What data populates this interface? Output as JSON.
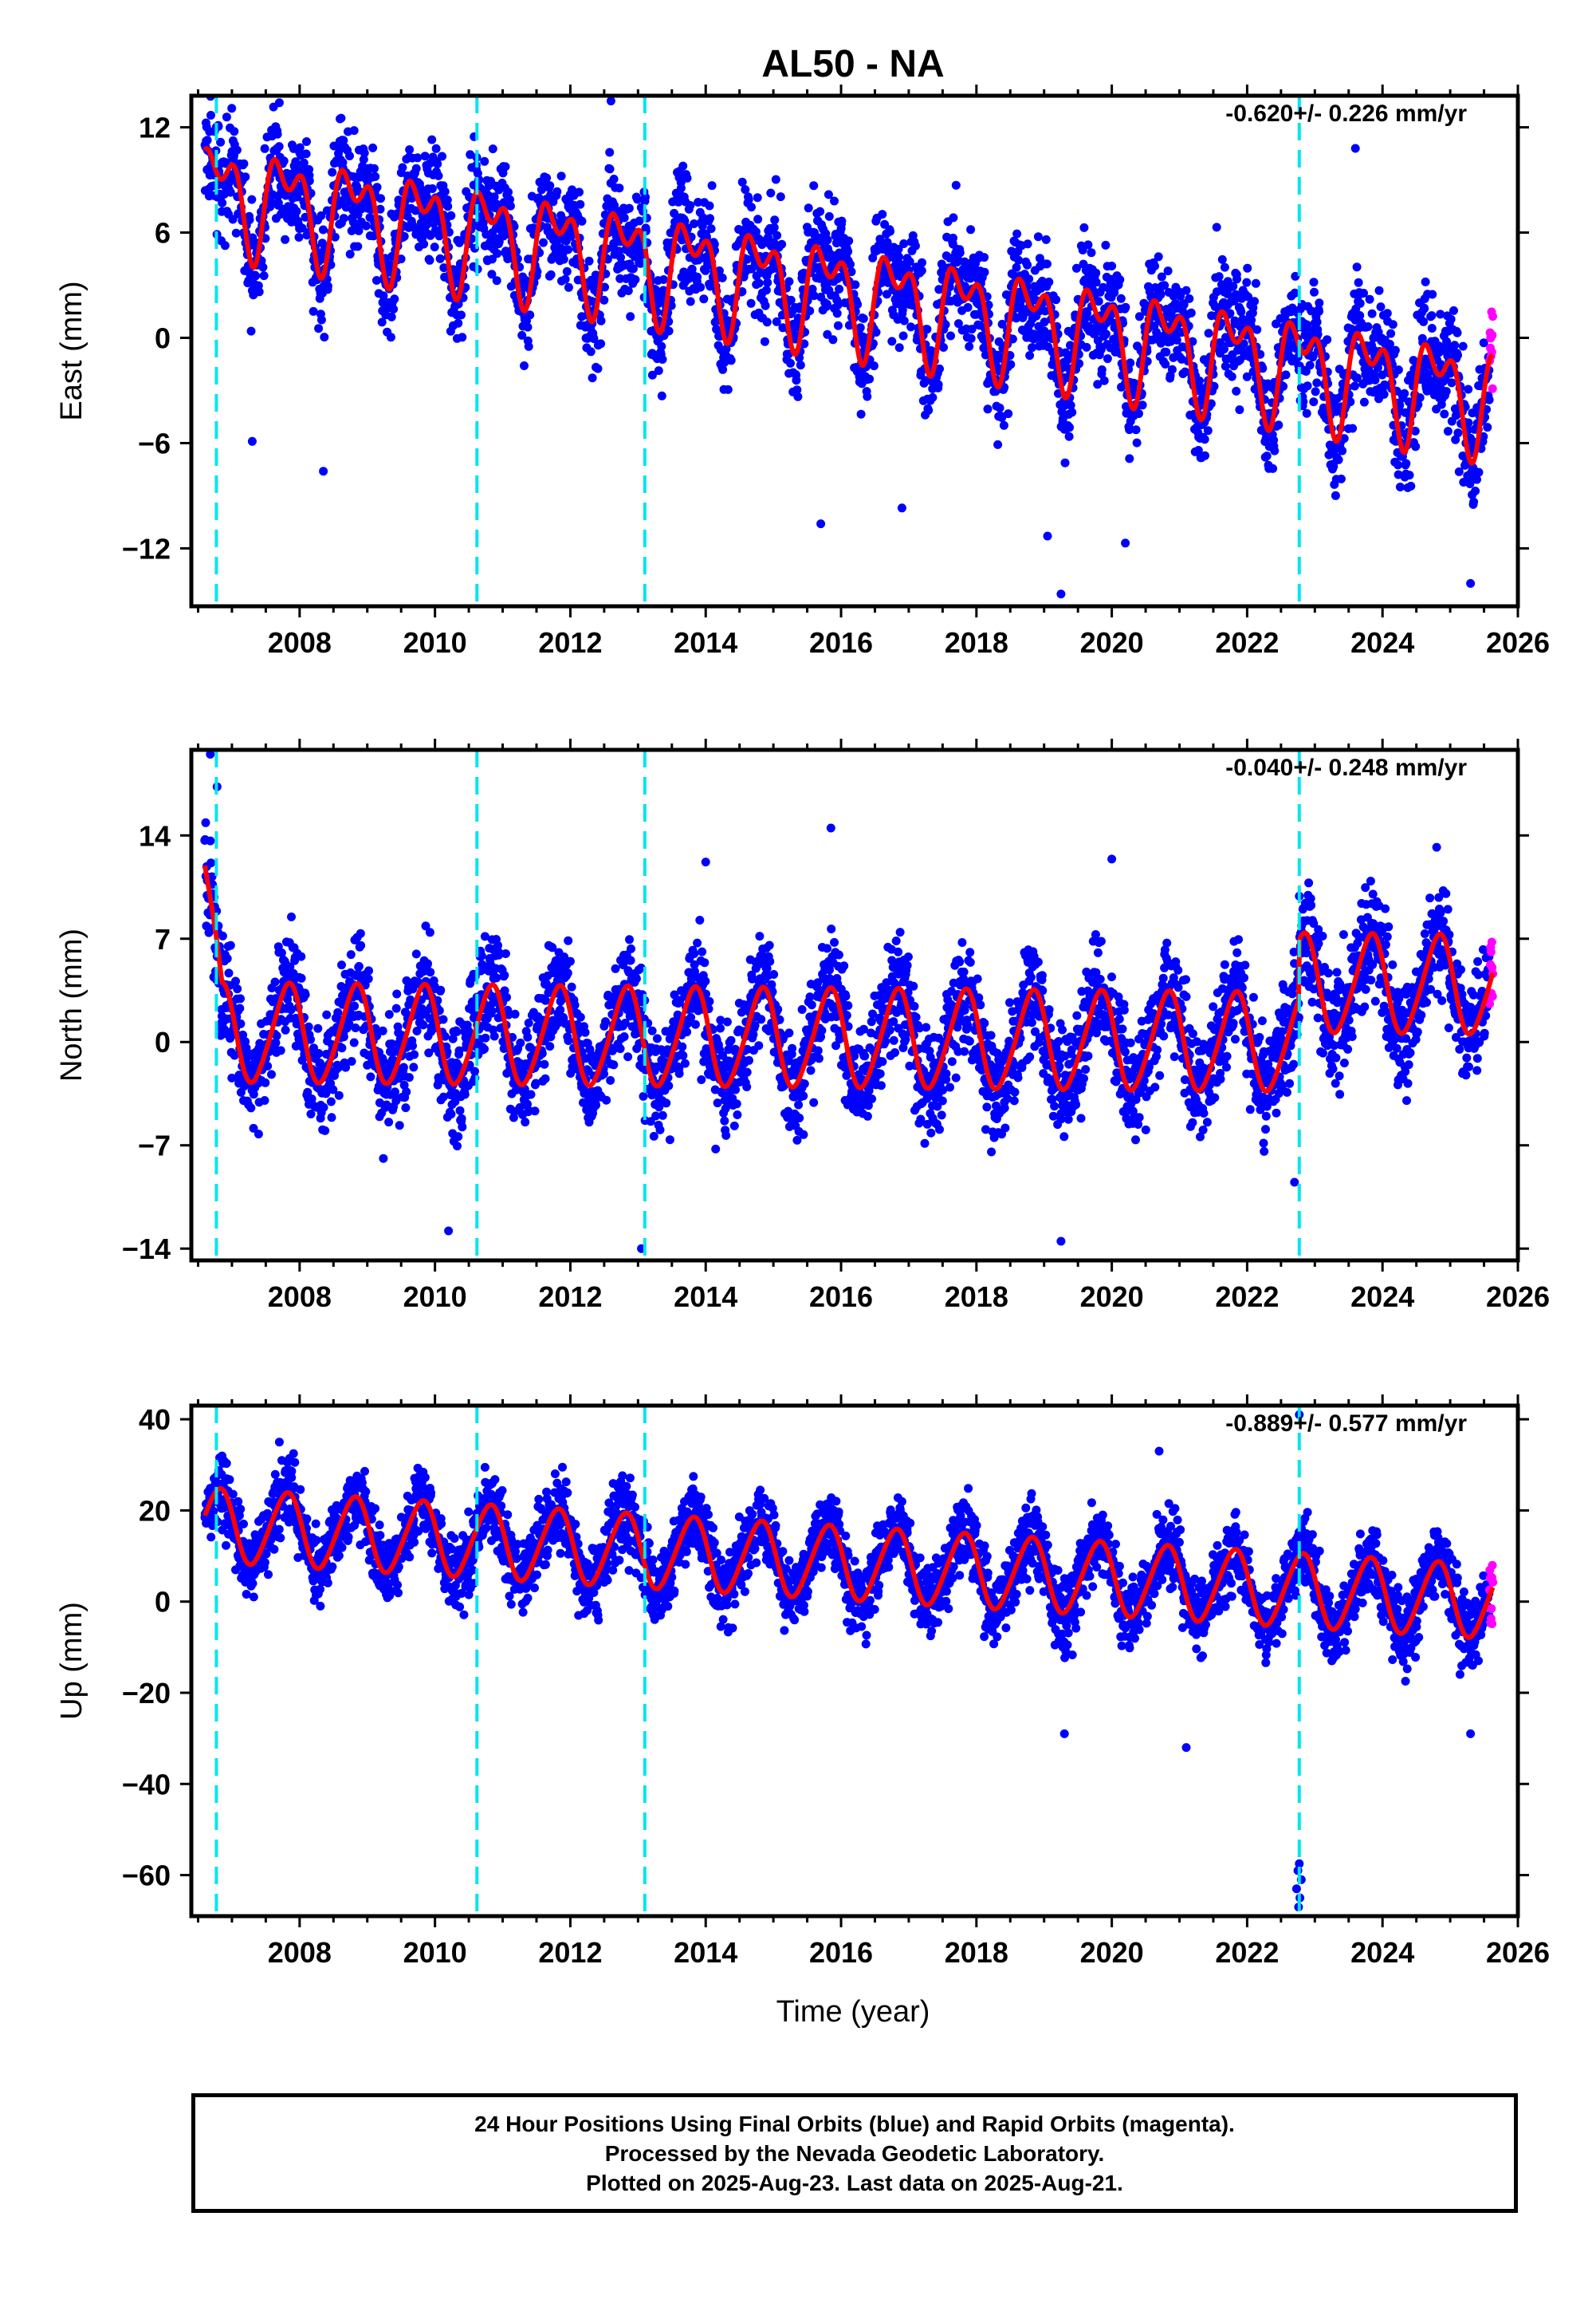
{
  "title": "AL50 - NA",
  "xlabel": "Time (year)",
  "colors": {
    "final": "#0000ff",
    "rapid": "#ff00ff",
    "model": "#ff0000",
    "event": "#00e5ee",
    "frame": "#000000"
  },
  "footer": {
    "line1": "24 Hour Positions Using Final Orbits (blue) and Rapid Orbits (magenta).",
    "line2": "Processed by the Nevada Geodetic Laboratory.",
    "line3": "Plotted on 2025-Aug-23. Last data on 2025-Aug-21."
  },
  "chart_data": [
    {
      "type": "scatter",
      "component": "East",
      "ylabel": "East (mm)",
      "rate_label": "-0.620+/- 0.226 mm/yr",
      "xlim": [
        2006.4,
        2026.0
      ],
      "ylim": [
        -15.3,
        13.8
      ],
      "xticks": [
        2008,
        2010,
        2012,
        2014,
        2016,
        2018,
        2020,
        2022,
        2024,
        2026
      ],
      "yticks": [
        -12,
        -6,
        0,
        6,
        12
      ],
      "data_span": [
        2006.6,
        2025.63
      ],
      "rapid_start": 2025.58,
      "event_lines": [
        2006.77,
        2010.62,
        2013.1,
        2022.77
      ],
      "model": {
        "offset": 2.6,
        "slope": -0.62,
        "annual_amp": 2.4,
        "annual_phase": 0.55,
        "semiannual_amp": 1.6,
        "semiannual_phase": 0.45,
        "scatter_sigma": 1.9,
        "steps": []
      },
      "outliers": [
        [
          2007.7,
          13.4
        ],
        [
          2012.6,
          13.5
        ],
        [
          2019.25,
          -14.6
        ],
        [
          2025.3,
          -14.0
        ],
        [
          2008.35,
          -7.6
        ],
        [
          2007.3,
          -5.9
        ],
        [
          2015.7,
          -10.6
        ],
        [
          2016.9,
          -9.7
        ],
        [
          2019.05,
          -11.3
        ],
        [
          2020.2,
          -11.7
        ],
        [
          2023.6,
          10.8
        ],
        [
          2015.9,
          7.8
        ],
        [
          2017.7,
          8.7
        ],
        [
          2021.55,
          6.3
        ]
      ]
    },
    {
      "type": "scatter",
      "component": "North",
      "ylabel": "North (mm)",
      "rate_label": "-0.040+/- 0.248 mm/yr",
      "xlim": [
        2006.4,
        2026.0
      ],
      "ylim": [
        -14.8,
        19.8
      ],
      "xticks": [
        2008,
        2010,
        2012,
        2014,
        2016,
        2018,
        2020,
        2022,
        2024,
        2026
      ],
      "yticks": [
        -14,
        -7,
        0,
        7,
        14
      ],
      "data_span": [
        2006.6,
        2025.63
      ],
      "rapid_start": 2025.58,
      "event_lines": [
        2006.77,
        2010.62,
        2013.1,
        2022.77
      ],
      "model": {
        "offset": 0.2,
        "slope": -0.04,
        "annual_amp": 3.3,
        "annual_phase": 0.57,
        "semiannual_amp": 0.4,
        "semiannual_phase": 0.3,
        "scatter_sigma": 2.2,
        "steps": [
          [
            2022.77,
            4.0
          ]
        ],
        "transient": [
          2006.6,
          2006.85,
          11.0
        ]
      },
      "outliers": [
        [
          2006.68,
          19.5
        ],
        [
          2006.78,
          17.3
        ],
        [
          2014.0,
          12.2
        ],
        [
          2015.85,
          14.5
        ],
        [
          2020.0,
          12.4
        ],
        [
          2024.8,
          13.2
        ],
        [
          2019.25,
          -13.5
        ],
        [
          2022.7,
          -9.5
        ],
        [
          2010.2,
          -12.8
        ],
        [
          2013.05,
          -14.0
        ]
      ]
    },
    {
      "type": "scatter",
      "component": "Up",
      "ylabel": "Up (mm)",
      "rate_label": "-0.889+/- 0.577 mm/yr",
      "xlim": [
        2006.4,
        2026.0
      ],
      "ylim": [
        -69.0,
        43.0
      ],
      "xticks": [
        2008,
        2010,
        2012,
        2014,
        2016,
        2018,
        2020,
        2022,
        2024,
        2026
      ],
      "yticks": [
        -60,
        -40,
        -20,
        0,
        20,
        40
      ],
      "data_span": [
        2006.6,
        2025.63
      ],
      "rapid_start": 2025.58,
      "event_lines": [
        2006.77,
        2010.62,
        2013.1,
        2022.77
      ],
      "model": {
        "offset": 8.5,
        "slope": -0.889,
        "annual_amp": 8.0,
        "annual_phase": 0.55,
        "semiannual_amp": 0.8,
        "semiannual_phase": 0.3,
        "scatter_sigma": 4.8,
        "steps": []
      },
      "outliers": [
        [
          2020.7,
          33.0
        ],
        [
          2022.77,
          41.0
        ],
        [
          2022.77,
          -57.5
        ],
        [
          2022.75,
          -59.0
        ],
        [
          2022.8,
          -61.0
        ],
        [
          2022.73,
          -63.0
        ],
        [
          2022.78,
          -65.0
        ],
        [
          2022.76,
          -67.0
        ],
        [
          2007.7,
          35.0
        ],
        [
          2021.1,
          -32.0
        ],
        [
          2019.3,
          -29.0
        ],
        [
          2025.3,
          -29.0
        ]
      ]
    }
  ]
}
